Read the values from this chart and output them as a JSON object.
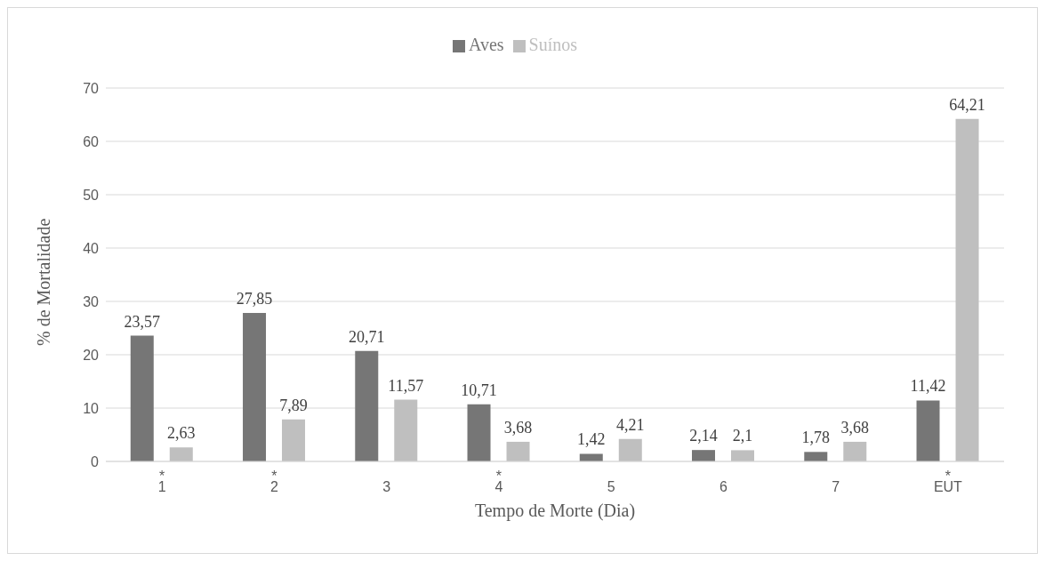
{
  "chart_data": {
    "type": "bar",
    "xlabel": "Tempo de Morte (Dia)",
    "ylabel": "% de Mortalidade",
    "categories": [
      "*\n1",
      "*\n2",
      "3",
      "*\n4",
      "5",
      "6",
      "7",
      "*\nEUT"
    ],
    "series": [
      {
        "name": "Aves",
        "color": "#767676",
        "values": [
          23.57,
          27.85,
          20.71,
          10.71,
          1.42,
          2.14,
          1.78,
          11.42
        ],
        "value_labels": [
          "23,57",
          "27,85",
          "20,71",
          "10,71",
          "1,42",
          "2,14",
          "1,78",
          "11,42"
        ]
      },
      {
        "name": "Suínos",
        "color": "#bfbfbf",
        "values": [
          2.63,
          7.89,
          11.57,
          3.68,
          4.21,
          2.1,
          3.68,
          64.21
        ],
        "value_labels": [
          "2,63",
          "7,89",
          "11,57",
          "3,68",
          "4,21",
          "2,1",
          "3,68",
          "64,21"
        ]
      }
    ],
    "ylim": [
      0,
      70
    ],
    "yticks": [
      0,
      10,
      20,
      30,
      40,
      50,
      60,
      70
    ],
    "grid": "y",
    "legend": "top"
  }
}
